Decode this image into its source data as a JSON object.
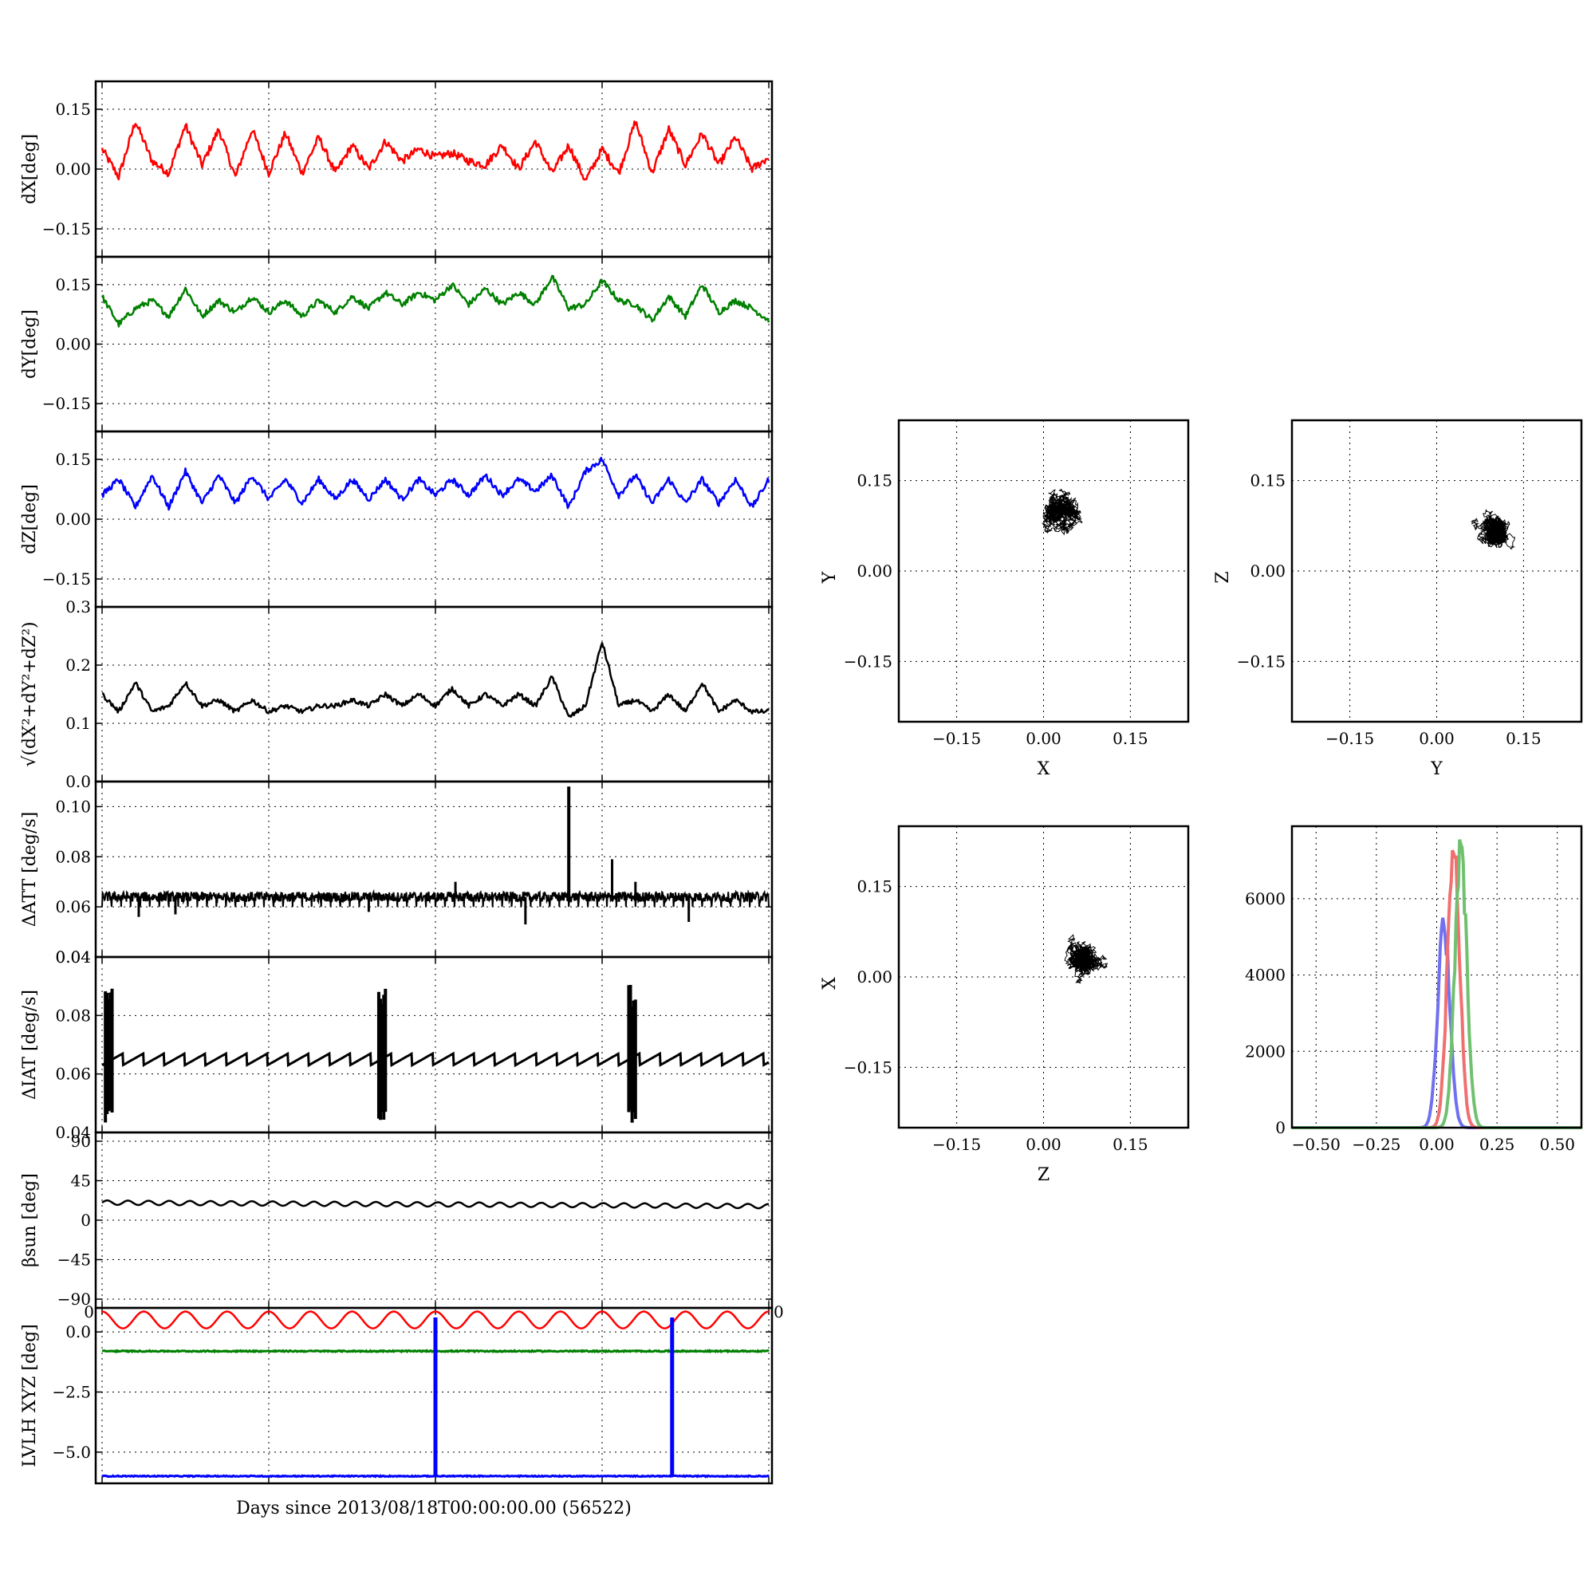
{
  "colors": {
    "x": "#ff0000",
    "y": "#008000",
    "z": "#0000ff",
    "k": "#000000",
    "hx": "#f07070",
    "hy": "#70c070",
    "hz": "#7070f0"
  },
  "xlabel": "Days since 2013/08/18T00:00:00.00 (56522)",
  "panels": [
    {
      "key": "dx",
      "ylabel": "dX[deg]",
      "ylim": [
        -0.22,
        0.22
      ],
      "yticks": [
        "0.15",
        "0.00",
        "−0.15"
      ],
      "ytick_values": [
        0.15,
        0.0,
        -0.15
      ]
    },
    {
      "key": "dy",
      "ylabel": "dY[deg]",
      "ylim": [
        -0.22,
        0.22
      ],
      "yticks": [
        "0.15",
        "0.00",
        "−0.15"
      ],
      "ytick_values": [
        0.15,
        0.0,
        -0.15
      ]
    },
    {
      "key": "dz",
      "ylabel": "dZ[deg]",
      "ylim": [
        -0.22,
        0.22
      ],
      "yticks": [
        "0.15",
        "0.00",
        "−0.15"
      ],
      "ytick_values": [
        0.15,
        0.0,
        -0.15
      ]
    },
    {
      "key": "r",
      "ylabel": "√(dX²+dY²+dZ²)",
      "ylim": [
        0.0,
        0.3
      ],
      "yticks": [
        "0.3",
        "0.2",
        "0.1",
        "0.0"
      ],
      "ytick_values": [
        0.3,
        0.2,
        0.1,
        0.0
      ]
    },
    {
      "key": "datt",
      "ylabel": "ΔATT [deg/s]",
      "ylim": [
        0.04,
        0.11
      ],
      "yticks": [
        "0.10",
        "0.08",
        "0.06",
        "0.04"
      ],
      "ytick_values": [
        0.1,
        0.08,
        0.06,
        0.04
      ]
    },
    {
      "key": "diat",
      "ylabel": "ΔIAT [deg/s]",
      "ylim": [
        0.04,
        0.1
      ],
      "yticks": [
        "0.08",
        "0.06",
        "0.04"
      ],
      "ytick_values": [
        0.08,
        0.06,
        0.04
      ]
    },
    {
      "key": "beta",
      "ylabel": "βsun [deg]",
      "ylim": [
        -100,
        100
      ],
      "yticks": [
        "90",
        "45",
        "0",
        "−45",
        "−90"
      ],
      "ytick_values": [
        90,
        45,
        0,
        -45,
        -90
      ]
    },
    {
      "key": "lvlh",
      "ylabel": "LVLH XYZ [deg]",
      "ylim": [
        -6.3,
        1.0
      ],
      "yticks": [
        "0.0",
        "−2.5",
        "−5.0"
      ],
      "ytick_values": [
        0.0,
        -2.5,
        -5.0
      ]
    }
  ],
  "overlap_ticks": {
    "datt_bottom": "0.04",
    "beta_left": "0",
    "beta_right": "0"
  },
  "scatter_plots": [
    {
      "key": "xy",
      "xlabel": "X",
      "ylabel": "Y"
    },
    {
      "key": "yz",
      "xlabel": "Y",
      "ylabel": "Z"
    },
    {
      "key": "zx",
      "xlabel": "Z",
      "ylabel": "X"
    }
  ],
  "scatter_ticks": [
    "−0.15",
    "0.00",
    "0.15"
  ],
  "scatter_tick_values": [
    -0.15,
    0.0,
    0.15
  ],
  "histogram": {
    "xticks": [
      "−0.50",
      "−0.25",
      "0.00",
      "0.25",
      "0.50"
    ],
    "xtick_values": [
      -0.5,
      -0.25,
      0.0,
      0.25,
      0.5
    ],
    "yticks": [
      "6000",
      "4000",
      "2000",
      "0"
    ],
    "ytick_values": [
      6000,
      4000,
      2000,
      0
    ],
    "xlim": [
      -0.6,
      0.6
    ],
    "ylim": [
      0,
      7900
    ]
  },
  "chart_data": [
    {
      "type": "line",
      "panel": "dx",
      "ylabel": "dX[deg]",
      "x": [
        0,
        0.5,
        1.0,
        1.5,
        2.0,
        2.5,
        3.0,
        3.5,
        4.0,
        4.5,
        5.0,
        5.5,
        6.0,
        6.5,
        7.0,
        7.5,
        8.0,
        8.5,
        9.0,
        9.5,
        10.0,
        10.5,
        11.0,
        11.5,
        12.0,
        12.5,
        13.0,
        13.5,
        14.0,
        14.5,
        15.0,
        15.5,
        16.0,
        16.5,
        17.0,
        17.5,
        18.0,
        18.5,
        19.0,
        19.5,
        20.0
      ],
      "values": [
        0.05,
        -0.02,
        0.12,
        0.02,
        -0.01,
        0.11,
        0.01,
        0.1,
        -0.02,
        0.1,
        -0.01,
        0.09,
        -0.01,
        0.08,
        -0.01,
        0.06,
        0.0,
        0.07,
        0.02,
        0.05,
        0.03,
        0.04,
        0.02,
        0.01,
        0.06,
        0.0,
        0.07,
        -0.01,
        0.06,
        -0.03,
        0.05,
        -0.01,
        0.12,
        -0.01,
        0.1,
        0.01,
        0.09,
        0.01,
        0.08,
        0.0,
        0.03
      ],
      "ylim": [
        -0.22,
        0.22
      ]
    },
    {
      "type": "line",
      "panel": "dy",
      "ylabel": "dY[deg]",
      "x": [
        0,
        0.5,
        1.0,
        1.5,
        2.0,
        2.5,
        3.0,
        3.5,
        4.0,
        4.5,
        5.0,
        5.5,
        6.0,
        6.5,
        7.0,
        7.5,
        8.0,
        8.5,
        9.0,
        9.5,
        10.0,
        10.5,
        11.0,
        11.5,
        12.0,
        12.5,
        13.0,
        13.5,
        14.0,
        14.5,
        15.0,
        15.5,
        16.0,
        16.5,
        17.0,
        17.5,
        18.0,
        18.5,
        19.0,
        19.5,
        20.0
      ],
      "values": [
        0.12,
        0.05,
        0.09,
        0.11,
        0.07,
        0.14,
        0.07,
        0.11,
        0.08,
        0.12,
        0.08,
        0.11,
        0.07,
        0.11,
        0.08,
        0.12,
        0.09,
        0.13,
        0.1,
        0.13,
        0.11,
        0.15,
        0.1,
        0.14,
        0.1,
        0.13,
        0.1,
        0.17,
        0.09,
        0.1,
        0.16,
        0.11,
        0.1,
        0.06,
        0.12,
        0.07,
        0.15,
        0.08,
        0.11,
        0.09,
        0.06
      ],
      "ylim": [
        -0.22,
        0.22
      ]
    },
    {
      "type": "line",
      "panel": "dz",
      "ylabel": "dZ[deg]",
      "x": [
        0,
        0.5,
        1.0,
        1.5,
        2.0,
        2.5,
        3.0,
        3.5,
        4.0,
        4.5,
        5.0,
        5.5,
        6.0,
        6.5,
        7.0,
        7.5,
        8.0,
        8.5,
        9.0,
        9.5,
        10.0,
        10.5,
        11.0,
        11.5,
        12.0,
        12.5,
        13.0,
        13.5,
        14.0,
        14.5,
        15.0,
        15.5,
        16.0,
        16.5,
        17.0,
        17.5,
        18.0,
        18.5,
        19.0,
        19.5,
        20.0
      ],
      "values": [
        0.06,
        0.1,
        0.03,
        0.11,
        0.03,
        0.12,
        0.04,
        0.11,
        0.04,
        0.11,
        0.05,
        0.1,
        0.04,
        0.1,
        0.05,
        0.1,
        0.05,
        0.1,
        0.05,
        0.1,
        0.06,
        0.1,
        0.06,
        0.11,
        0.06,
        0.1,
        0.07,
        0.11,
        0.03,
        0.12,
        0.15,
        0.06,
        0.11,
        0.04,
        0.1,
        0.04,
        0.1,
        0.04,
        0.1,
        0.03,
        0.1
      ],
      "ylim": [
        -0.22,
        0.22
      ]
    },
    {
      "type": "line",
      "panel": "r",
      "x": [
        0,
        0.5,
        1.0,
        1.5,
        2.0,
        2.5,
        3.0,
        3.5,
        4.0,
        4.5,
        5.0,
        5.5,
        6.0,
        6.5,
        7.0,
        7.5,
        8.0,
        8.5,
        9.0,
        9.5,
        10.0,
        10.5,
        11.0,
        11.5,
        12.0,
        12.5,
        13.0,
        13.5,
        14.0,
        14.5,
        15.0,
        15.5,
        16.0,
        16.5,
        17.0,
        17.5,
        18.0,
        18.5,
        19.0,
        19.5,
        20.0
      ],
      "values": [
        0.15,
        0.12,
        0.17,
        0.12,
        0.13,
        0.17,
        0.13,
        0.14,
        0.12,
        0.14,
        0.12,
        0.13,
        0.12,
        0.13,
        0.13,
        0.14,
        0.13,
        0.15,
        0.13,
        0.15,
        0.13,
        0.16,
        0.13,
        0.15,
        0.13,
        0.15,
        0.13,
        0.18,
        0.11,
        0.13,
        0.24,
        0.13,
        0.14,
        0.12,
        0.15,
        0.12,
        0.17,
        0.12,
        0.14,
        0.12,
        0.12
      ],
      "ylim": [
        0.0,
        0.3
      ]
    },
    {
      "type": "line",
      "panel": "datt",
      "ylabel": "ΔATT [deg/s]",
      "x": [
        0,
        0.5,
        1.0,
        1.5,
        2.0,
        2.5,
        3.0,
        3.5,
        4.0,
        4.5,
        5.0,
        5.5,
        6.0,
        6.5,
        7.0,
        7.5,
        8.0,
        8.5,
        9.0,
        9.5,
        10.0,
        10.5,
        11.0,
        11.5,
        12.0,
        12.5,
        13.0,
        13.5,
        14.0,
        14.5,
        15.0,
        15.5,
        16.0,
        16.5,
        17.0,
        17.5,
        18.0,
        18.5,
        19.0,
        19.5,
        20.0
      ],
      "values": [
        0.064,
        0.064,
        0.058,
        0.064,
        0.064,
        0.064,
        0.064,
        0.064,
        0.064,
        0.064,
        0.07,
        0.064,
        0.064,
        0.064,
        0.064,
        0.064,
        0.064,
        0.064,
        0.064,
        0.064,
        0.064,
        0.064,
        0.064,
        0.064,
        0.064,
        0.064,
        0.064,
        0.064,
        0.064,
        0.064,
        0.108,
        0.064,
        0.064,
        0.064,
        0.064,
        0.064,
        0.064,
        0.064,
        0.064,
        0.064,
        0.064
      ],
      "ylim": [
        0.04,
        0.11
      ]
    },
    {
      "type": "line",
      "panel": "diat",
      "ylabel": "ΔIAT [deg/s]",
      "x": [
        0,
        0.5,
        1.0,
        1.5,
        2.0,
        2.5,
        3.0,
        3.5,
        4.0,
        4.5,
        5.0,
        5.5,
        6.0,
        6.5,
        7.0,
        7.5,
        8.0,
        8.5,
        9.0,
        9.5,
        10.0,
        10.5,
        11.0,
        11.5,
        12.0,
        12.5,
        13.0,
        13.5,
        14.0,
        14.5,
        15.0,
        15.5,
        16.0,
        16.5,
        17.0,
        17.5,
        18.0,
        18.5,
        19.0,
        19.5,
        20.0
      ],
      "values": [
        0.09,
        0.064,
        0.064,
        0.064,
        0.064,
        0.064,
        0.064,
        0.064,
        0.064,
        0.064,
        0.064,
        0.064,
        0.064,
        0.064,
        0.064,
        0.064,
        0.064,
        0.064,
        0.09,
        0.064,
        0.064,
        0.064,
        0.064,
        0.064,
        0.064,
        0.064,
        0.064,
        0.064,
        0.064,
        0.064,
        0.064,
        0.064,
        0.064,
        0.064,
        0.064,
        0.064,
        0.064,
        0.064,
        0.064,
        0.064,
        0.064
      ],
      "ylim": [
        0.04,
        0.1
      ]
    },
    {
      "type": "line",
      "panel": "beta",
      "x": [
        0,
        20
      ],
      "values": [
        20,
        16
      ],
      "ylim": [
        -100,
        100
      ]
    },
    {
      "type": "line",
      "panel": "lvlh",
      "ylabel": "LVLH XYZ [deg]",
      "series": [
        {
          "values": [
            0.6,
            0.6
          ],
          "color": "#ff0000"
        },
        {
          "values": [
            -0.8,
            -0.8
          ],
          "color": "#008000"
        },
        {
          "values": [
            -6.0,
            -6.0
          ],
          "color": "#0000ff"
        }
      ],
      "x": [
        0,
        20
      ],
      "ylim": [
        -6.3,
        1.0
      ]
    },
    {
      "type": "scatter",
      "panel": "xy",
      "xlabel": "X",
      "ylabel": "Y",
      "xlim": [
        -0.25,
        0.25
      ],
      "ylim": [
        -0.25,
        0.25
      ],
      "center": [
        0.03,
        0.1
      ],
      "spread": [
        0.06,
        0.05
      ]
    },
    {
      "type": "scatter",
      "panel": "yz",
      "xlabel": "Y",
      "ylabel": "Z",
      "xlim": [
        -0.25,
        0.25
      ],
      "ylim": [
        -0.25,
        0.25
      ],
      "center": [
        0.1,
        0.07
      ],
      "spread": [
        0.04,
        0.05
      ]
    },
    {
      "type": "scatter",
      "panel": "zx",
      "xlabel": "Z",
      "ylabel": "X",
      "xlim": [
        -0.25,
        0.25
      ],
      "ylim": [
        -0.25,
        0.25
      ],
      "center": [
        0.07,
        0.03
      ],
      "spread": [
        0.04,
        0.06
      ]
    },
    {
      "type": "bar",
      "panel": "hist",
      "series": [
        {
          "color": "#7070f0",
          "center": 0.03,
          "sigma": 0.025,
          "peak": 5700
        },
        {
          "color": "#f07070",
          "center": 0.07,
          "sigma": 0.025,
          "peak": 7900
        },
        {
          "color": "#70c070",
          "center": 0.1,
          "sigma": 0.025,
          "peak": 7800
        }
      ],
      "xlim": [
        -0.6,
        0.6
      ],
      "ylim": [
        0,
        7900
      ]
    }
  ]
}
